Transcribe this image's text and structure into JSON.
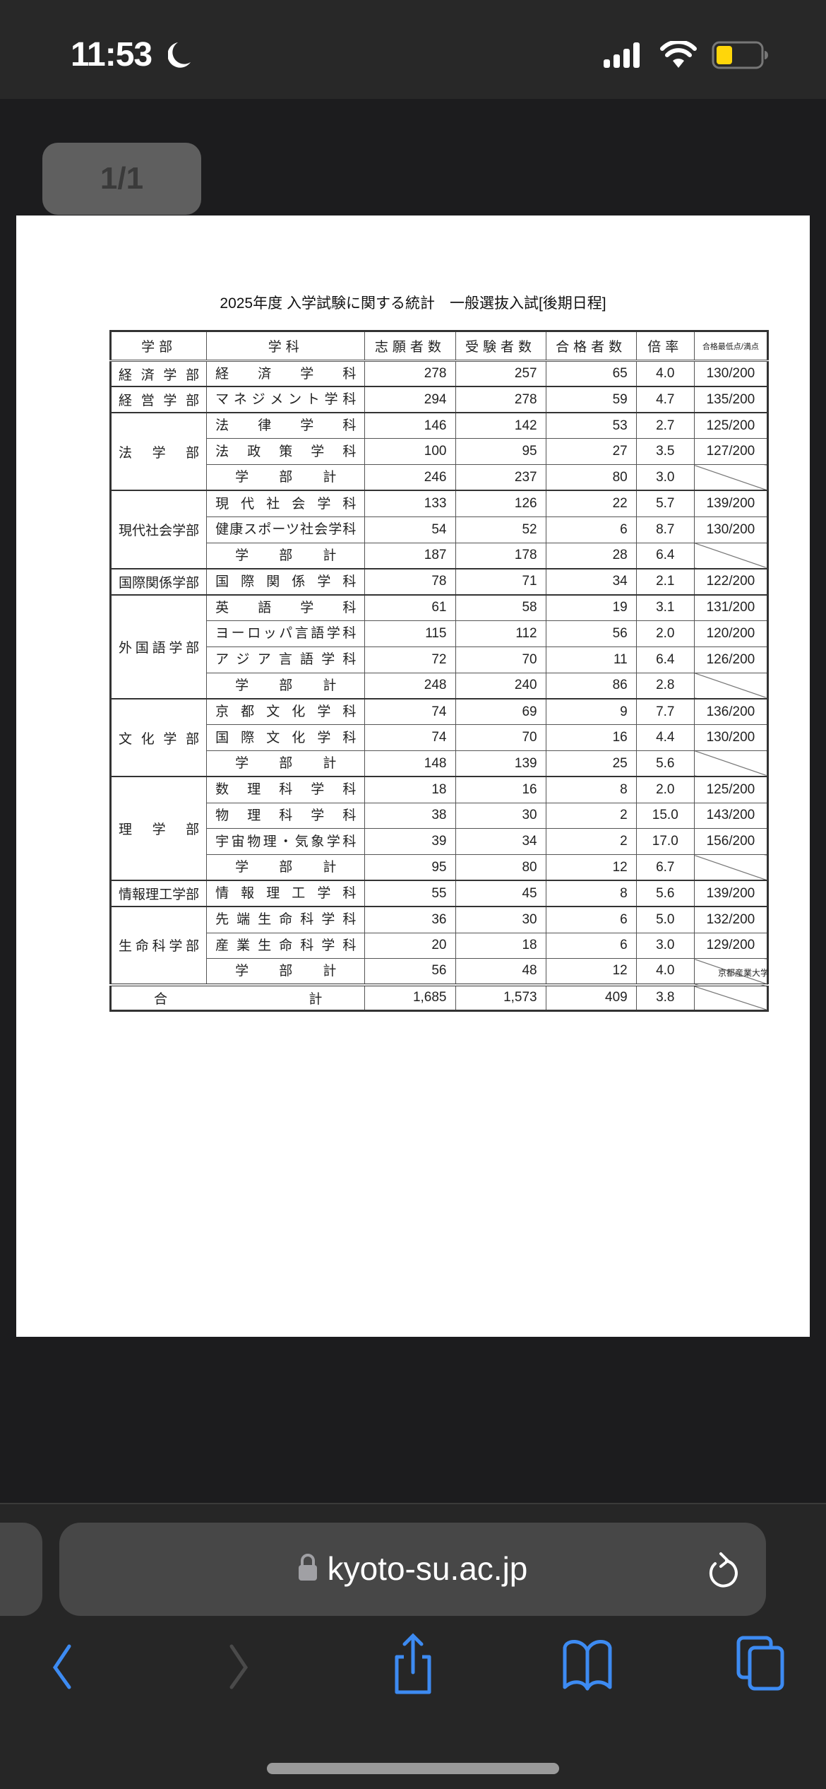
{
  "status_bar": {
    "time": "11:53",
    "focus_icon": "moon-icon",
    "battery_color": "#ffd60a"
  },
  "viewer": {
    "page_indicator": "1/1",
    "title": "2025年度  入学試験に関する統計　一般選抜入試[後期日程]",
    "columns": [
      "学部",
      "学科",
      "志願者数",
      "受験者数",
      "合格者数",
      "倍率",
      "合格最低点/満点"
    ],
    "faculties": [
      {
        "name": "経済学部",
        "rows": [
          {
            "dept": "経済学科",
            "applicants": "278",
            "examinees": "257",
            "passed": "65",
            "ratio": "4.0",
            "min_score": "130/200"
          }
        ]
      },
      {
        "name": "経営学部",
        "rows": [
          {
            "dept": "マネジメント学科",
            "applicants": "294",
            "examinees": "278",
            "passed": "59",
            "ratio": "4.7",
            "min_score": "135/200"
          }
        ]
      },
      {
        "name": "法学部",
        "rows": [
          {
            "dept": "法律学科",
            "applicants": "146",
            "examinees": "142",
            "passed": "53",
            "ratio": "2.7",
            "min_score": "125/200"
          },
          {
            "dept": "法政策学科",
            "applicants": "100",
            "examinees": "95",
            "passed": "27",
            "ratio": "3.5",
            "min_score": "127/200"
          },
          {
            "dept": "学部計",
            "subtotal": true,
            "applicants": "246",
            "examinees": "237",
            "passed": "80",
            "ratio": "3.0"
          }
        ]
      },
      {
        "name": "現代社会学部",
        "rows": [
          {
            "dept": "現代社会学科",
            "applicants": "133",
            "examinees": "126",
            "passed": "22",
            "ratio": "5.7",
            "min_score": "139/200"
          },
          {
            "dept": "健康スポーツ社会学科",
            "applicants": "54",
            "examinees": "52",
            "passed": "6",
            "ratio": "8.7",
            "min_score": "130/200"
          },
          {
            "dept": "学部計",
            "subtotal": true,
            "applicants": "187",
            "examinees": "178",
            "passed": "28",
            "ratio": "6.4"
          }
        ]
      },
      {
        "name": "国際関係学部",
        "rows": [
          {
            "dept": "国際関係学科",
            "applicants": "78",
            "examinees": "71",
            "passed": "34",
            "ratio": "2.1",
            "min_score": "122/200"
          }
        ]
      },
      {
        "name": "外国語学部",
        "rows": [
          {
            "dept": "英語学科",
            "applicants": "61",
            "examinees": "58",
            "passed": "19",
            "ratio": "3.1",
            "min_score": "131/200"
          },
          {
            "dept": "ヨーロッパ言語学科",
            "applicants": "115",
            "examinees": "112",
            "passed": "56",
            "ratio": "2.0",
            "min_score": "120/200"
          },
          {
            "dept": "アジア言語学科",
            "applicants": "72",
            "examinees": "70",
            "passed": "11",
            "ratio": "6.4",
            "min_score": "126/200"
          },
          {
            "dept": "学部計",
            "subtotal": true,
            "applicants": "248",
            "examinees": "240",
            "passed": "86",
            "ratio": "2.8"
          }
        ]
      },
      {
        "name": "文化学部",
        "rows": [
          {
            "dept": "京都文化学科",
            "applicants": "74",
            "examinees": "69",
            "passed": "9",
            "ratio": "7.7",
            "min_score": "136/200"
          },
          {
            "dept": "国際文化学科",
            "applicants": "74",
            "examinees": "70",
            "passed": "16",
            "ratio": "4.4",
            "min_score": "130/200"
          },
          {
            "dept": "学部計",
            "subtotal": true,
            "applicants": "148",
            "examinees": "139",
            "passed": "25",
            "ratio": "5.6"
          }
        ]
      },
      {
        "name": "理学部",
        "rows": [
          {
            "dept": "数理科学科",
            "applicants": "18",
            "examinees": "16",
            "passed": "8",
            "ratio": "2.0",
            "min_score": "125/200"
          },
          {
            "dept": "物理科学科",
            "applicants": "38",
            "examinees": "30",
            "passed": "2",
            "ratio": "15.0",
            "min_score": "143/200"
          },
          {
            "dept": "宇宙物理・気象学科",
            "applicants": "39",
            "examinees": "34",
            "passed": "2",
            "ratio": "17.0",
            "min_score": "156/200"
          },
          {
            "dept": "学部計",
            "subtotal": true,
            "applicants": "95",
            "examinees": "80",
            "passed": "12",
            "ratio": "6.7"
          }
        ]
      },
      {
        "name": "情報理工学部",
        "rows": [
          {
            "dept": "情報理工学科",
            "applicants": "55",
            "examinees": "45",
            "passed": "8",
            "ratio": "5.6",
            "min_score": "139/200"
          }
        ]
      },
      {
        "name": "生命科学部",
        "rows": [
          {
            "dept": "先端生命科学科",
            "applicants": "36",
            "examinees": "30",
            "passed": "6",
            "ratio": "5.0",
            "min_score": "132/200"
          },
          {
            "dept": "産業生命科学科",
            "applicants": "20",
            "examinees": "18",
            "passed": "6",
            "ratio": "3.0",
            "min_score": "129/200"
          },
          {
            "dept": "学部計",
            "subtotal": true,
            "applicants": "56",
            "examinees": "48",
            "passed": "12",
            "ratio": "4.0"
          }
        ]
      }
    ],
    "total": {
      "label": "合計",
      "applicants": "1,685",
      "examinees": "1,573",
      "passed": "409",
      "ratio": "3.8"
    },
    "footer": "京都産業大学"
  },
  "browser": {
    "url": "kyoto-su.ac.jp",
    "accent_color": "#3d8bf2",
    "buttons": [
      "back",
      "forward",
      "share",
      "bookmarks",
      "tabs"
    ]
  }
}
